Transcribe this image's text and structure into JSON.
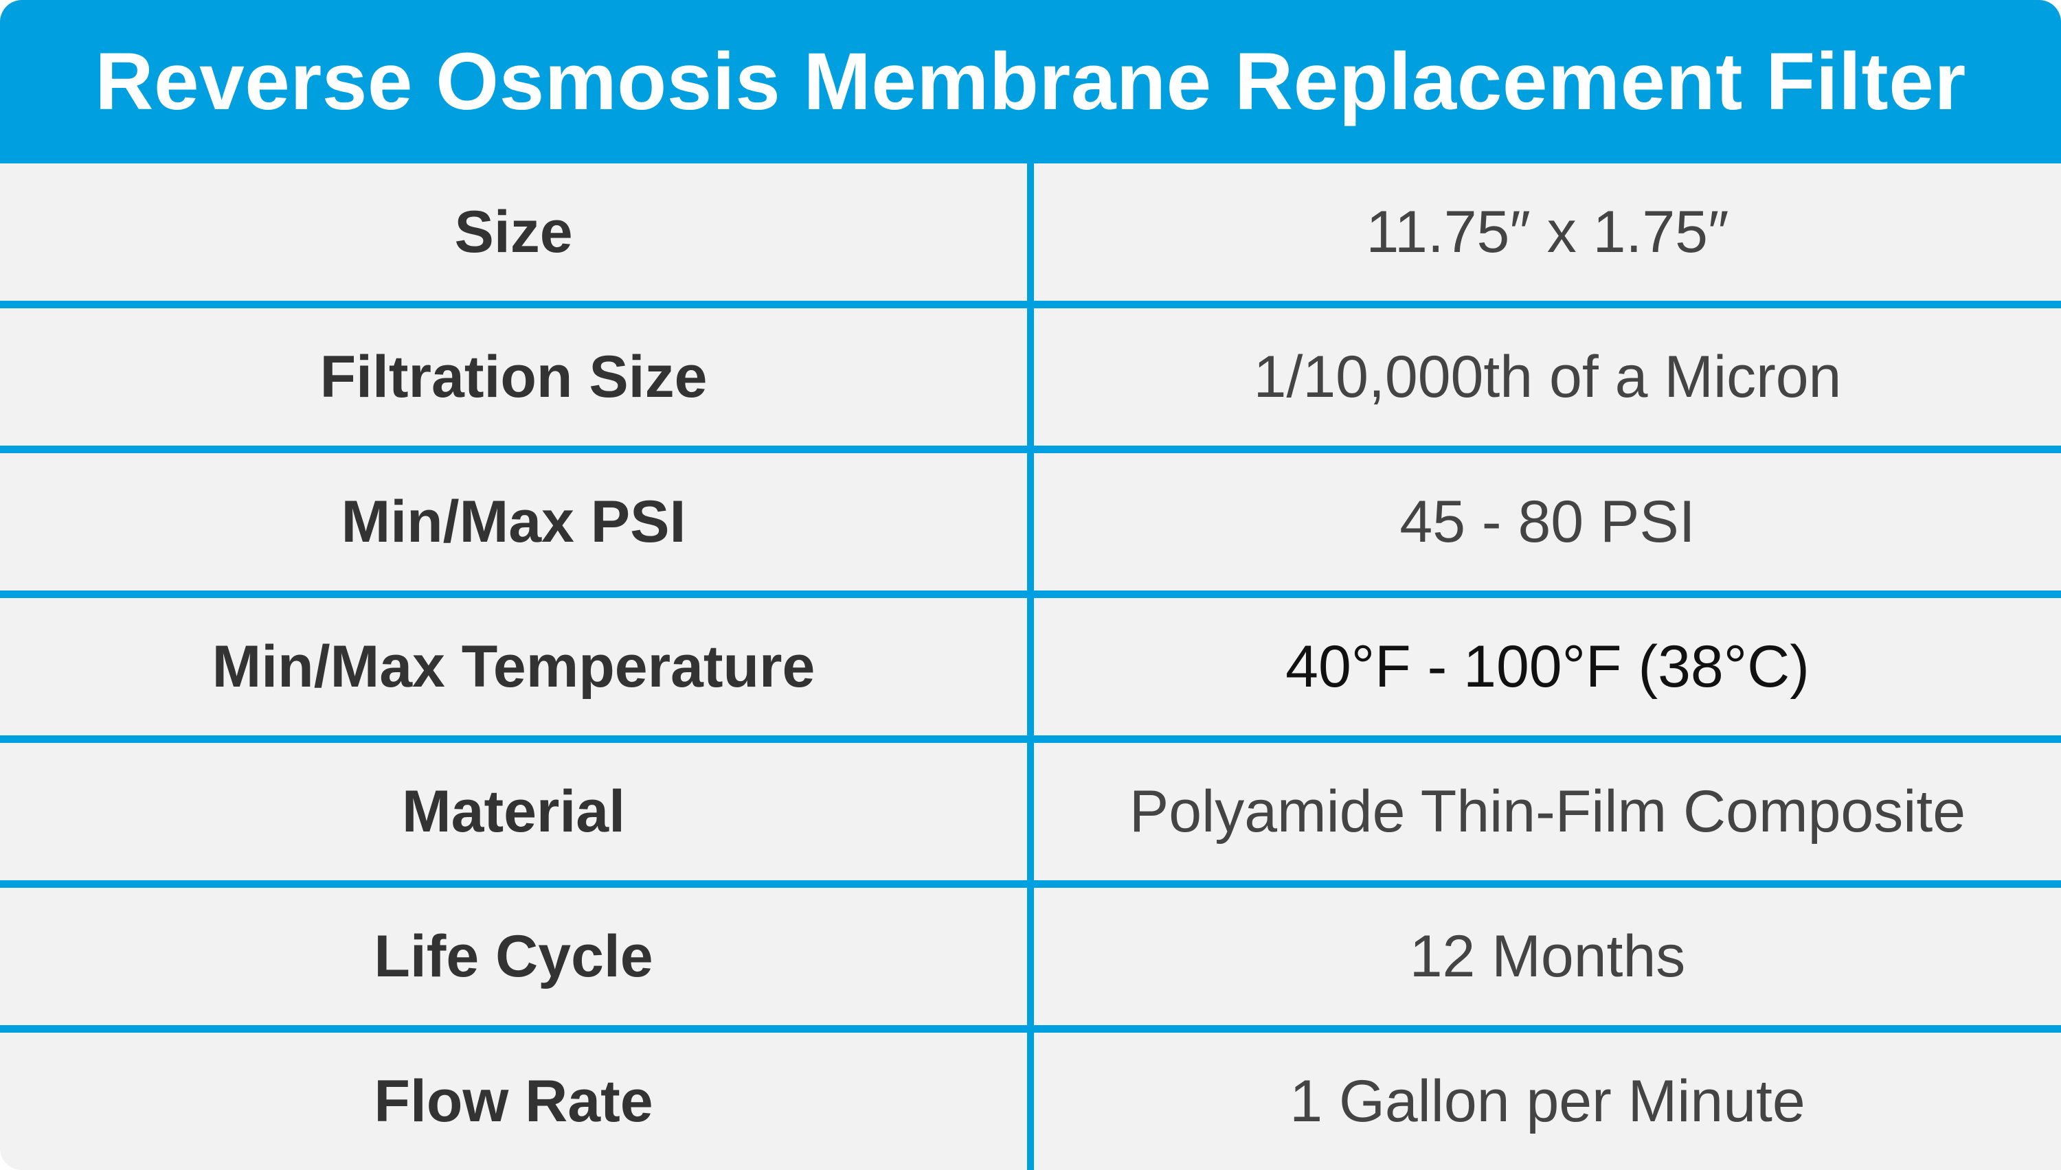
{
  "header": {
    "title": "Reverse Osmosis Membrane Replacement Filter"
  },
  "colors": {
    "accent": "#009fdf",
    "row_background": "#f2f2f2",
    "label_text": "#333333",
    "value_text": "#444444",
    "header_text": "#ffffff"
  },
  "specs": [
    {
      "label": "Size",
      "value": "11.75″ x 1.75″"
    },
    {
      "label": "Filtration Size",
      "value": "1/10,000th of a Micron"
    },
    {
      "label": "Min/Max PSI",
      "value": "45 - 80 PSI"
    },
    {
      "label": "Min/Max Temperature",
      "value": "40°F - 100°F (38°C)"
    },
    {
      "label": "Material",
      "value": "Polyamide Thin-Film Composite"
    },
    {
      "label": "Life Cycle",
      "value": "12 Months"
    },
    {
      "label": "Flow Rate",
      "value": "1 Gallon per Minute"
    }
  ]
}
